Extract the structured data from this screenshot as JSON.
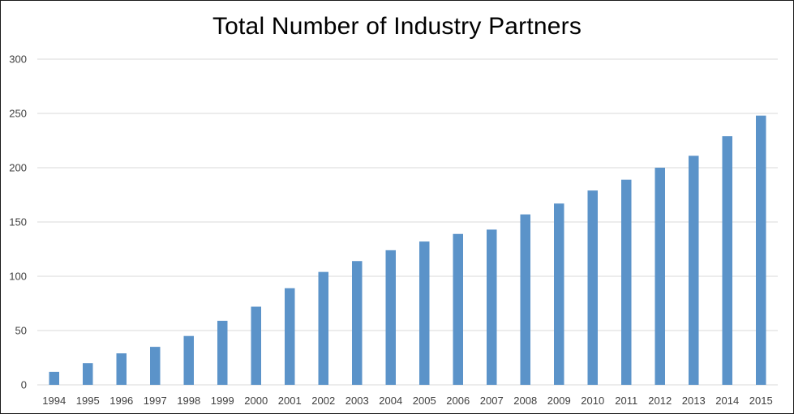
{
  "chart_data": {
    "type": "bar",
    "title": "Total Number of Industry Partners",
    "categories": [
      "1994",
      "1995",
      "1996",
      "1997",
      "1998",
      "1999",
      "2000",
      "2001",
      "2002",
      "2003",
      "2004",
      "2005",
      "2006",
      "2007",
      "2008",
      "2009",
      "2010",
      "2011",
      "2012",
      "2013",
      "2014",
      "2015"
    ],
    "values": [
      12,
      20,
      29,
      35,
      45,
      59,
      72,
      89,
      104,
      114,
      124,
      132,
      139,
      143,
      157,
      167,
      179,
      189,
      200,
      211,
      229,
      248
    ],
    "ylim": [
      0,
      300
    ],
    "yticks": [
      "0",
      "50",
      "100",
      "150",
      "200",
      "250",
      "300"
    ],
    "xlabel": "",
    "ylabel": "",
    "grid": true,
    "legend": "none",
    "bar_color": "#5b93c9",
    "grid_color": "#d9d9d9"
  }
}
